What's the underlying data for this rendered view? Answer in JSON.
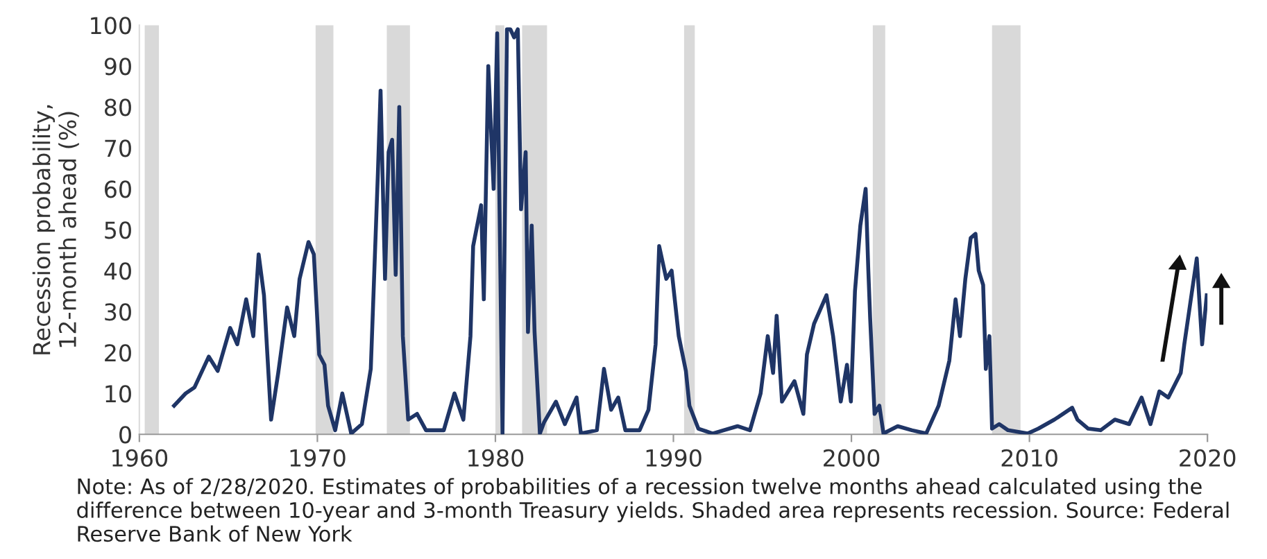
{
  "chart_data": {
    "type": "line",
    "ylabel": "Recession probability,\n12-month ahead (%)",
    "x": [
      1961.95,
      1962.6,
      1963.1,
      1963.9,
      1964.4,
      1965.1,
      1965.5,
      1966.0,
      1966.4,
      1966.7,
      1967.0,
      1967.4,
      1967.8,
      1968.3,
      1968.7,
      1969.0,
      1969.5,
      1969.8,
      1970.1,
      1970.4,
      1970.6,
      1971.0,
      1971.4,
      1971.9,
      1972.5,
      1973.0,
      1973.4,
      1973.55,
      1973.8,
      1974.0,
      1974.2,
      1974.4,
      1974.6,
      1974.8,
      1975.1,
      1975.6,
      1976.1,
      1977.1,
      1977.7,
      1978.2,
      1978.6,
      1978.75,
      1979.2,
      1979.35,
      1979.6,
      1979.9,
      1980.1,
      1980.4,
      1980.65,
      1980.84,
      1981.05,
      1981.26,
      1981.44,
      1981.7,
      1981.83,
      1982.04,
      1982.2,
      1982.5,
      1982.74,
      1983.4,
      1983.9,
      1984.56,
      1984.8,
      1985.7,
      1986.1,
      1986.5,
      1986.9,
      1987.3,
      1988.1,
      1988.6,
      1989.0,
      1989.2,
      1989.6,
      1989.9,
      1990.3,
      1990.7,
      1990.9,
      1991.4,
      1992.2,
      1993.6,
      1994.3,
      1994.9,
      1995.3,
      1995.6,
      1995.8,
      1996.1,
      1996.8,
      1997.3,
      1997.5,
      1997.9,
      1998.6,
      1998.97,
      1999.4,
      1999.75,
      1999.97,
      2000.2,
      2000.5,
      2000.8,
      2000.95,
      2001.05,
      2001.3,
      2001.57,
      2001.8,
      2002.6,
      2003.4,
      2004.2,
      2004.9,
      2005.5,
      2005.85,
      2006.1,
      2006.4,
      2006.7,
      2006.97,
      2007.15,
      2007.4,
      2007.55,
      2007.75,
      2007.9,
      2008.3,
      2008.8,
      2009.9,
      2010.5,
      2011.4,
      2012.4,
      2012.7,
      2013.3,
      2014.0,
      2014.8,
      2015.6,
      2016.3,
      2016.8,
      2017.3,
      2017.8,
      2018.5,
      2018.7,
      2019.0,
      2019.4,
      2019.7,
      2019.96
    ],
    "series": [
      {
        "color": "#1f3566",
        "values": [
          7,
          10,
          11.5,
          19,
          15.5,
          26,
          22,
          33,
          24,
          44,
          34,
          3.6,
          15,
          31,
          24,
          38,
          47,
          44,
          19.5,
          17,
          7,
          1,
          10,
          0.2,
          2.5,
          16,
          64,
          84,
          38,
          69,
          72,
          39,
          80,
          24,
          3.6,
          5,
          1,
          1,
          10,
          3.6,
          24,
          46,
          56,
          33,
          90,
          60,
          98,
          0.2,
          99,
          99,
          97,
          99,
          55,
          69,
          25,
          51,
          25,
          0.2,
          3,
          8,
          2.5,
          9,
          0.2,
          1,
          16,
          6,
          9,
          1,
          1,
          6,
          22,
          46,
          38,
          40,
          24,
          15.5,
          7,
          1.4,
          0.2,
          2,
          1,
          10,
          24,
          15,
          29,
          8,
          13,
          5,
          19.5,
          27,
          34,
          24,
          8,
          17,
          8,
          35,
          51,
          60,
          40,
          28.6,
          5,
          7,
          0.2,
          2,
          1,
          0.2,
          7,
          18,
          33,
          24,
          38,
          48,
          49,
          40,
          36.5,
          16,
          24,
          1.4,
          2.5,
          1,
          0.2,
          1.4,
          3.6,
          6.5,
          3.6,
          1.4,
          1,
          3.6,
          2.5,
          9,
          2.5,
          10.5,
          9,
          15,
          22,
          31,
          43,
          22,
          34
        ]
      }
    ],
    "xlim": [
      1960,
      2020
    ],
    "xticks": [
      1960,
      1970,
      1980,
      1990,
      2000,
      2010,
      2020
    ],
    "ylim": [
      0,
      100
    ],
    "yticks": [
      0,
      10,
      20,
      30,
      40,
      50,
      60,
      70,
      80,
      90,
      100
    ],
    "grid": false,
    "legend": false,
    "marker": "none",
    "line_style": "solid",
    "bands": [
      {
        "axis": "x",
        "from": 1960.3,
        "to": 1961.1,
        "color": "#d9d9d9"
      },
      {
        "axis": "x",
        "from": 1969.9,
        "to": 1970.9,
        "color": "#d9d9d9"
      },
      {
        "axis": "x",
        "from": 1973.9,
        "to": 1975.2,
        "color": "#d9d9d9"
      },
      {
        "axis": "x",
        "from": 1980.0,
        "to": 1980.5,
        "color": "#d9d9d9"
      },
      {
        "axis": "x",
        "from": 1981.5,
        "to": 1982.9,
        "color": "#d9d9d9"
      },
      {
        "axis": "x",
        "from": 1990.6,
        "to": 1991.2,
        "color": "#d9d9d9"
      },
      {
        "axis": "x",
        "from": 2001.2,
        "to": 2001.9,
        "color": "#d9d9d9"
      },
      {
        "axis": "x",
        "from": 2007.9,
        "to": 2009.5,
        "color": "#d9d9d9"
      }
    ],
    "annotations": [
      "Note: As of 2/28/2020. Estimates of probabilities of a recession twelve months ahead calculated using the difference between 10-year and 3-month Treasury yields. Shaded area represents recession. Source: Federal Reserve Bank of New York"
    ]
  }
}
